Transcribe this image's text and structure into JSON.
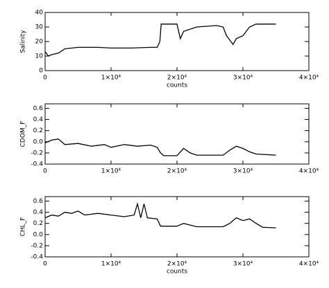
{
  "chart_data": [
    {
      "type": "line",
      "y_label": "Salinity",
      "x_label": "counts",
      "x": [
        0,
        500,
        1000,
        2000,
        3000,
        5000,
        8000,
        10000,
        13000,
        16000,
        17000,
        17400,
        17600,
        19000,
        20000,
        20500,
        21000,
        23000,
        26000,
        27000,
        27500,
        28500,
        29000,
        30000,
        31000,
        32000,
        35000
      ],
      "series": [
        {
          "name": "Salinity",
          "color": "#000000",
          "values": [
            13,
            10,
            11,
            12,
            15,
            16,
            16,
            15.5,
            15.5,
            16,
            16,
            20,
            32,
            32,
            32,
            22,
            27,
            30,
            31,
            30,
            24,
            18,
            22,
            24,
            30,
            32,
            32
          ]
        }
      ],
      "xlim": [
        0,
        40000
      ],
      "ylim": [
        0,
        40
      ],
      "xticks": [
        0,
        {
          "value": 10000,
          "label": "1×10⁴"
        },
        {
          "value": 20000,
          "label": "2×10⁴"
        },
        {
          "value": 30000,
          "label": "3×10⁴"
        },
        {
          "value": 40000,
          "label": "4×10⁴"
        }
      ],
      "yticks": [
        0,
        10,
        20,
        30,
        40
      ]
    },
    {
      "type": "line",
      "y_label": "CDOM_F",
      "x": [
        0,
        1000,
        2000,
        3000,
        5000,
        7000,
        9000,
        10000,
        12000,
        14000,
        16000,
        17000,
        17500,
        18000,
        20000,
        21000,
        22000,
        23000,
        27000,
        28000,
        29000,
        30000,
        31000,
        32000,
        35000
      ],
      "series": [
        {
          "name": "CDOM_F",
          "color": "#000000",
          "values": [
            -0.02,
            0.03,
            0.05,
            -0.05,
            -0.03,
            -0.08,
            -0.05,
            -0.1,
            -0.05,
            -0.08,
            -0.06,
            -0.1,
            -0.2,
            -0.25,
            -0.25,
            -0.12,
            -0.2,
            -0.24,
            -0.24,
            -0.15,
            -0.08,
            -0.12,
            -0.18,
            -0.22,
            -0.24
          ]
        }
      ],
      "xlim": [
        0,
        40000
      ],
      "ylim": [
        -0.4,
        0.68
      ],
      "xticks": [
        0,
        {
          "value": 10000,
          "label": "1×10⁴"
        },
        {
          "value": 20000,
          "label": "2×10⁴"
        },
        {
          "value": 30000,
          "label": "3×10⁴"
        },
        {
          "value": 40000,
          "label": "4×10⁴"
        }
      ],
      "yticks": [
        -0.4,
        -0.2,
        {
          "value": 0,
          "label": "0.0"
        },
        0.2,
        0.4,
        0.6
      ]
    },
    {
      "type": "line",
      "y_label": "CHL_F",
      "x_label": "counts",
      "x": [
        0,
        1000,
        2000,
        3000,
        4000,
        5000,
        6000,
        8000,
        10000,
        12000,
        13500,
        14000,
        14500,
        15000,
        15500,
        17000,
        17500,
        20000,
        21000,
        22000,
        23000,
        27000,
        28000,
        29000,
        30000,
        31000,
        32000,
        33000,
        35000
      ],
      "series": [
        {
          "name": "CHL_F",
          "color": "#000000",
          "values": [
            0.3,
            0.35,
            0.33,
            0.4,
            0.38,
            0.42,
            0.35,
            0.38,
            0.35,
            0.32,
            0.35,
            0.55,
            0.3,
            0.55,
            0.3,
            0.28,
            0.15,
            0.15,
            0.2,
            0.17,
            0.14,
            0.14,
            0.2,
            0.3,
            0.25,
            0.28,
            0.2,
            0.13,
            0.12
          ]
        }
      ],
      "xlim": [
        0,
        40000
      ],
      "ylim": [
        -0.4,
        0.68
      ],
      "xticks": [
        0,
        {
          "value": 10000,
          "label": "1×10⁴"
        },
        {
          "value": 20000,
          "label": "2×10⁴"
        },
        {
          "value": 30000,
          "label": "3×10⁴"
        },
        {
          "value": 40000,
          "label": "4×10⁴"
        }
      ],
      "yticks": [
        -0.4,
        -0.2,
        {
          "value": 0,
          "label": "0.0"
        },
        0.2,
        0.4,
        0.6
      ]
    }
  ]
}
